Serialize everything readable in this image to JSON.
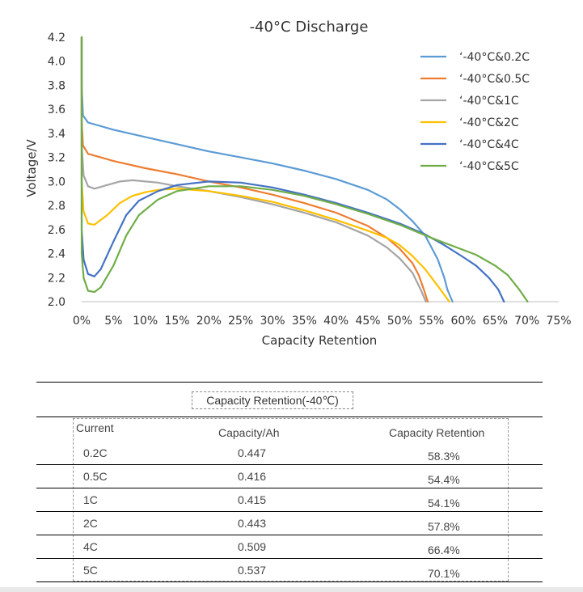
{
  "chart_data": {
    "type": "line",
    "title": "-40°C Discharge",
    "xlabel": "Capacity Retention",
    "ylabel": "Voltage/V",
    "xlim": [
      0,
      75
    ],
    "ylim": [
      2.0,
      4.2
    ],
    "x_ticks": [
      "0%",
      "5%",
      "10%",
      "15%",
      "20%",
      "25%",
      "30%",
      "35%",
      "40%",
      "45%",
      "50%",
      "55%",
      "60%",
      "65%",
      "70%",
      "75%"
    ],
    "y_ticks": [
      "2.0",
      "2.2",
      "2.4",
      "2.6",
      "2.8",
      "3.0",
      "3.2",
      "3.4",
      "3.6",
      "3.8",
      "4.0",
      "4.2"
    ],
    "legend_position": "top-right",
    "series": [
      {
        "name": "‘-40°C&0.2C",
        "color": "#5b9bd5",
        "points": [
          [
            0,
            4.2
          ],
          [
            0,
            3.8
          ],
          [
            0.2,
            3.55
          ],
          [
            1,
            3.49
          ],
          [
            5,
            3.43
          ],
          [
            10,
            3.37
          ],
          [
            15,
            3.31
          ],
          [
            20,
            3.25
          ],
          [
            25,
            3.2
          ],
          [
            30,
            3.15
          ],
          [
            35,
            3.09
          ],
          [
            40,
            3.02
          ],
          [
            45,
            2.93
          ],
          [
            48,
            2.85
          ],
          [
            50,
            2.77
          ],
          [
            52,
            2.67
          ],
          [
            54,
            2.55
          ],
          [
            55,
            2.45
          ],
          [
            56,
            2.35
          ],
          [
            57,
            2.2
          ],
          [
            57.5,
            2.1
          ],
          [
            58.3,
            2.0
          ]
        ]
      },
      {
        "name": "‘-40°C&0.5C",
        "color": "#ed7d31",
        "points": [
          [
            0,
            4.2
          ],
          [
            0,
            3.5
          ],
          [
            0.2,
            3.3
          ],
          [
            1,
            3.23
          ],
          [
            3,
            3.2
          ],
          [
            5,
            3.17
          ],
          [
            10,
            3.11
          ],
          [
            15,
            3.06
          ],
          [
            20,
            3.0
          ],
          [
            25,
            2.95
          ],
          [
            30,
            2.89
          ],
          [
            35,
            2.82
          ],
          [
            40,
            2.74
          ],
          [
            45,
            2.63
          ],
          [
            48,
            2.53
          ],
          [
            50,
            2.44
          ],
          [
            52,
            2.32
          ],
          [
            53,
            2.22
          ],
          [
            53.8,
            2.1
          ],
          [
            54.4,
            2.0
          ]
        ]
      },
      {
        "name": "‘-40°C&1C",
        "color": "#a5a5a5",
        "points": [
          [
            0,
            4.2
          ],
          [
            0,
            3.3
          ],
          [
            0.3,
            3.05
          ],
          [
            1,
            2.96
          ],
          [
            2,
            2.94
          ],
          [
            4,
            2.97
          ],
          [
            6,
            3.0
          ],
          [
            8,
            3.01
          ],
          [
            12,
            2.99
          ],
          [
            15,
            2.96
          ],
          [
            20,
            2.92
          ],
          [
            25,
            2.87
          ],
          [
            30,
            2.81
          ],
          [
            35,
            2.74
          ],
          [
            40,
            2.66
          ],
          [
            45,
            2.55
          ],
          [
            48,
            2.45
          ],
          [
            50,
            2.36
          ],
          [
            52,
            2.24
          ],
          [
            53.3,
            2.1
          ],
          [
            54.1,
            2.0
          ]
        ]
      },
      {
        "name": "‘-40°C&2C",
        "color": "#ffc000",
        "points": [
          [
            0,
            4.2
          ],
          [
            0,
            3.0
          ],
          [
            0.3,
            2.75
          ],
          [
            1,
            2.65
          ],
          [
            2,
            2.64
          ],
          [
            4,
            2.72
          ],
          [
            6,
            2.82
          ],
          [
            8,
            2.88
          ],
          [
            10,
            2.91
          ],
          [
            12,
            2.93
          ],
          [
            15,
            2.94
          ],
          [
            20,
            2.92
          ],
          [
            25,
            2.88
          ],
          [
            30,
            2.83
          ],
          [
            35,
            2.76
          ],
          [
            40,
            2.68
          ],
          [
            45,
            2.59
          ],
          [
            48,
            2.53
          ],
          [
            50,
            2.47
          ],
          [
            52,
            2.38
          ],
          [
            54,
            2.27
          ],
          [
            56,
            2.13
          ],
          [
            57.8,
            2.0
          ]
        ]
      },
      {
        "name": "‘-40°C&4C",
        "color": "#4472c4",
        "points": [
          [
            0,
            4.2
          ],
          [
            0,
            2.6
          ],
          [
            0.3,
            2.35
          ],
          [
            1,
            2.23
          ],
          [
            2,
            2.21
          ],
          [
            3,
            2.27
          ],
          [
            5,
            2.5
          ],
          [
            7,
            2.72
          ],
          [
            9,
            2.84
          ],
          [
            12,
            2.92
          ],
          [
            15,
            2.97
          ],
          [
            20,
            3.0
          ],
          [
            25,
            2.99
          ],
          [
            30,
            2.95
          ],
          [
            35,
            2.89
          ],
          [
            40,
            2.82
          ],
          [
            45,
            2.74
          ],
          [
            50,
            2.65
          ],
          [
            54,
            2.56
          ],
          [
            57,
            2.47
          ],
          [
            60,
            2.37
          ],
          [
            62,
            2.3
          ],
          [
            64,
            2.2
          ],
          [
            65.5,
            2.1
          ],
          [
            66.4,
            2.0
          ]
        ]
      },
      {
        "name": "‘-40°C&5C",
        "color": "#70ad47",
        "points": [
          [
            0,
            4.2
          ],
          [
            0,
            2.4
          ],
          [
            0.3,
            2.2
          ],
          [
            1,
            2.09
          ],
          [
            2,
            2.08
          ],
          [
            3,
            2.12
          ],
          [
            5,
            2.3
          ],
          [
            7,
            2.55
          ],
          [
            9,
            2.72
          ],
          [
            12,
            2.85
          ],
          [
            15,
            2.92
          ],
          [
            20,
            2.96
          ],
          [
            25,
            2.96
          ],
          [
            30,
            2.93
          ],
          [
            35,
            2.88
          ],
          [
            40,
            2.81
          ],
          [
            45,
            2.73
          ],
          [
            50,
            2.64
          ],
          [
            55,
            2.53
          ],
          [
            58,
            2.47
          ],
          [
            62,
            2.39
          ],
          [
            65,
            2.3
          ],
          [
            67,
            2.22
          ],
          [
            68.8,
            2.1
          ],
          [
            70.1,
            2.0
          ]
        ]
      }
    ]
  },
  "table": {
    "title": "Capacity Retention(-40℃)",
    "headers": [
      "Current",
      "Capacity/Ah",
      "Capacity Retention"
    ],
    "rows": [
      [
        "0.2C",
        "0.447",
        "58.3%"
      ],
      [
        "0.5C",
        "0.416",
        "54.4%"
      ],
      [
        "1C",
        "0.415",
        "54.1%"
      ],
      [
        "2C",
        "0.443",
        "57.8%"
      ],
      [
        "4C",
        "0.509",
        "66.4%"
      ],
      [
        "5C",
        "0.537",
        "70.1%"
      ]
    ]
  }
}
